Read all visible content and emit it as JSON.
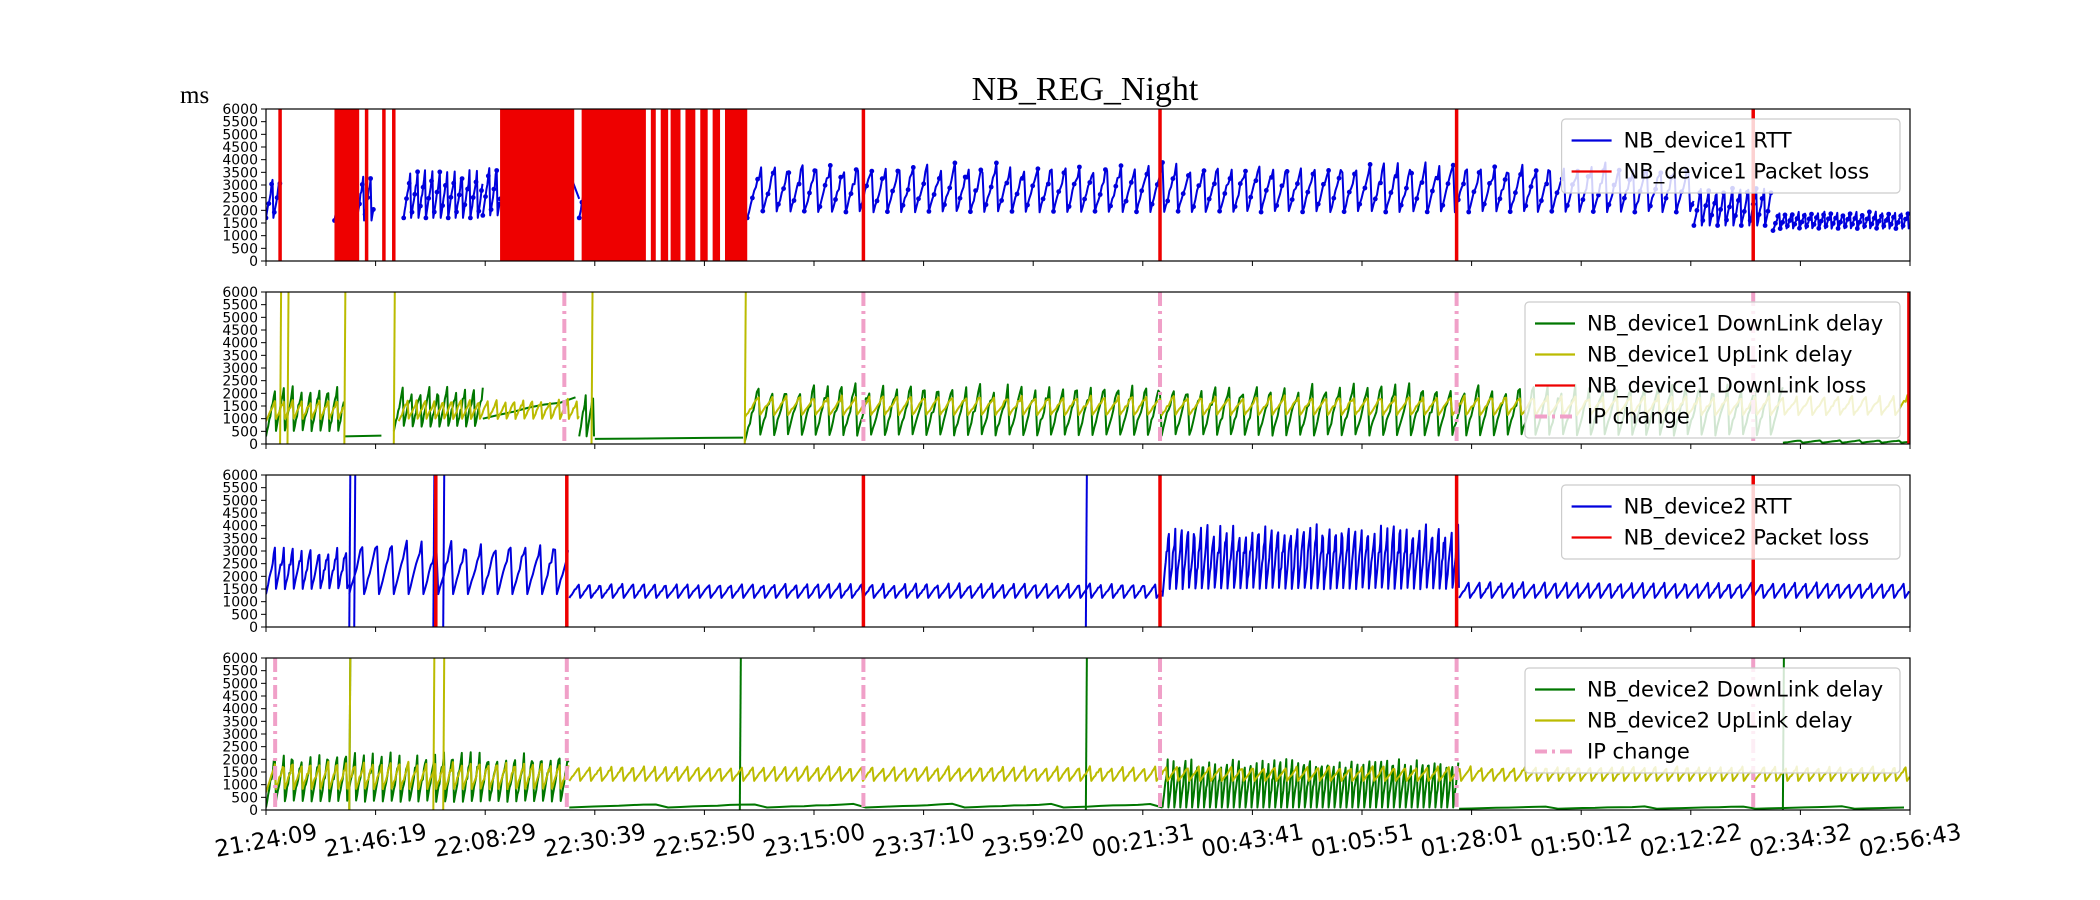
{
  "chart_data": {
    "type": "line",
    "title": "NB_REG_Night",
    "ylabel": "ms",
    "x_tick_labels": [
      "21:24:09",
      "21:46:19",
      "22:08:29",
      "22:30:39",
      "22:52:50",
      "23:15:00",
      "23:37:10",
      "23:59:20",
      "00:21:31",
      "00:43:41",
      "01:05:51",
      "01:28:01",
      "01:50:12",
      "02:12:22",
      "02:34:32",
      "02:56:43"
    ],
    "xlim": [
      "21:24:09",
      "02:56:43"
    ],
    "y_ticks": [
      0,
      500,
      1000,
      1500,
      2000,
      2500,
      3000,
      3500,
      4000,
      4500,
      5000,
      5500,
      6000
    ],
    "ylim": [
      0,
      6000
    ],
    "grid": false,
    "colors": {
      "rtt": "#0000dd",
      "loss": "#ee0000",
      "downlink": "#007700",
      "uplink": "#bbbb00",
      "ip_change": "#f0a0c8"
    },
    "panels": [
      {
        "legend": [
          "NB_device1 RTT",
          "NB_device1 Packet loss"
        ],
        "legend_position": "upper right",
        "series": [
          {
            "name": "NB_device1 RTT",
            "kind": "rtt",
            "markers": true,
            "segments": [
              {
                "start": "21:24:09",
                "end": "21:27:00",
                "min": 1700,
                "max": 3400,
                "period_min": 1.5
              },
              {
                "start": "21:38:00",
                "end": "21:46:00",
                "min": 1600,
                "max": 3500,
                "period_min": 1.5
              },
              {
                "start": "21:52:00",
                "end": "22:08:00",
                "min": 1700,
                "max": 3700,
                "period_min": 1.5
              },
              {
                "start": "22:08:00",
                "end": "22:11:30",
                "min": 1800,
                "max": 3800,
                "period_min": 1.5
              },
              {
                "start": "22:11:30",
                "end": "22:27:30",
                "min": 2450,
                "max": 3700,
                "period_min": 16
              },
              {
                "start": "22:27:30",
                "end": "22:30:40",
                "min": 1700,
                "max": 3200,
                "period_min": 1.5
              },
              {
                "start": "23:01:30",
                "end": "02:13:00",
                "min": 1700,
                "max": 3700,
                "period_min": 2.8
              },
              {
                "start": "02:13:00",
                "end": "02:29:00",
                "min": 1400,
                "max": 3000,
                "period_min": 1.6
              },
              {
                "start": "02:29:00",
                "end": "02:56:43",
                "min": 1200,
                "max": 1900,
                "period_min": 1.3
              }
            ]
          },
          {
            "name": "NB_device1 Packet loss",
            "kind": "loss",
            "bands": [
              {
                "start": "21:38:00",
                "end": "21:43:00"
              },
              {
                "start": "22:11:30",
                "end": "22:26:30"
              },
              {
                "start": "22:28:00",
                "end": "22:41:00"
              },
              {
                "start": "22:42:00",
                "end": "22:43:00"
              },
              {
                "start": "22:44:00",
                "end": "22:45:30"
              },
              {
                "start": "22:46:00",
                "end": "22:48:00"
              },
              {
                "start": "22:49:00",
                "end": "22:51:00"
              },
              {
                "start": "22:52:00",
                "end": "22:53:30"
              },
              {
                "start": "22:54:30",
                "end": "22:56:00"
              },
              {
                "start": "22:57:00",
                "end": "23:01:30"
              }
            ],
            "lines": [
              "21:27:00",
              "21:44:30",
              "21:48:00",
              "21:50:00",
              "23:25:00",
              "00:25:00",
              "01:25:00",
              "02:25:00"
            ]
          }
        ]
      },
      {
        "legend": [
          "NB_device1 DownLink delay",
          "NB_device1 UpLink delay",
          "NB_device1 DownLink loss",
          "IP change"
        ],
        "legend_position": "upper right",
        "series": [
          {
            "name": "NB_device1 DownLink delay",
            "kind": "downlink",
            "segments": [
              {
                "start": "21:24:09",
                "end": "21:40:00",
                "min": 300,
                "max": 2100,
                "period_min": 1.8
              },
              {
                "start": "21:40:00",
                "end": "21:50:00",
                "min": 300,
                "max": 450,
                "period_min": 30
              },
              {
                "start": "21:50:00",
                "end": "22:08:00",
                "min": 500,
                "max": 2100,
                "period_min": 1.8
              },
              {
                "start": "22:08:00",
                "end": "22:27:30",
                "min": 1000,
                "max": 2100,
                "period_min": 25
              },
              {
                "start": "22:27:30",
                "end": "22:30:40",
                "min": 300,
                "max": 2100,
                "period_min": 1.5
              },
              {
                "start": "22:30:40",
                "end": "23:01:00",
                "min": 200,
                "max": 300,
                "period_min": 60
              },
              {
                "start": "23:01:00",
                "end": "02:31:00",
                "min": 100,
                "max": 2200,
                "period_min": 2.8
              },
              {
                "start": "02:31:00",
                "end": "02:56:43",
                "min": 50,
                "max": 150,
                "period_min": 4
              }
            ]
          },
          {
            "name": "NB_device1 UpLink delay",
            "kind": "uplink",
            "segments": [
              {
                "start": "21:24:09",
                "end": "21:40:00",
                "min": 900,
                "max": 1700,
                "period_min": 1.8
              },
              {
                "start": "21:51:00",
                "end": "22:27:30",
                "min": 900,
                "max": 1700,
                "period_min": 1.8
              },
              {
                "start": "23:01:00",
                "end": "02:56:43",
                "min": 1050,
                "max": 1850,
                "period_min": 2.8
              }
            ],
            "spikes": [
              "21:27:00",
              "21:28:30",
              "21:40:00",
              "21:50:00",
              "22:30:00",
              "23:01:00"
            ]
          },
          {
            "name": "NB_device1 DownLink loss",
            "kind": "loss",
            "lines": [
              "02:56:30"
            ]
          },
          {
            "name": "IP change",
            "kind": "ip_change",
            "lines": [
              "22:24:30",
              "23:25:00",
              "00:25:00",
              "01:25:00",
              "02:25:00"
            ]
          }
        ]
      },
      {
        "legend": [
          "NB_device2 RTT",
          "NB_device2 Packet loss"
        ],
        "legend_position": "upper right",
        "series": [
          {
            "name": "NB_device2 RTT",
            "kind": "rtt",
            "segments": [
              {
                "start": "21:24:09",
                "end": "21:41:00",
                "min": 1300,
                "max": 3000,
                "period_min": 1.8
              },
              {
                "start": "21:41:00",
                "end": "22:25:30",
                "min": 1300,
                "max": 3500,
                "period_min": 3
              },
              {
                "start": "22:25:30",
                "end": "00:25:30",
                "min": 1150,
                "max": 1750,
                "period_min": 2.2
              },
              {
                "start": "00:25:30",
                "end": "01:25:30",
                "min": 1200,
                "max": 3800,
                "period_min": 1.3
              },
              {
                "start": "01:25:30",
                "end": "02:56:43",
                "min": 1150,
                "max": 1800,
                "period_min": 2.2
              }
            ],
            "spikes": [
              "21:41:00",
              "21:42:00",
              "21:58:00",
              "22:00:00",
              "00:10:00"
            ]
          },
          {
            "name": "NB_device2 Packet loss",
            "kind": "loss",
            "lines": [
              "21:58:30",
              "22:25:00",
              "23:25:00",
              "00:25:00",
              "01:25:00",
              "02:25:00"
            ]
          }
        ]
      },
      {
        "legend": [
          "NB_device2 DownLink delay",
          "NB_device2 UpLink delay",
          "IP change"
        ],
        "legend_position": "upper right",
        "series": [
          {
            "name": "NB_device2 DownLink delay",
            "kind": "downlink",
            "segments": [
              {
                "start": "21:24:09",
                "end": "22:25:30",
                "min": 100,
                "max": 2100,
                "period_min": 1.8
              },
              {
                "start": "22:25:30",
                "end": "00:25:30",
                "min": 100,
                "max": 250,
                "period_min": 20
              },
              {
                "start": "00:25:30",
                "end": "01:25:30",
                "min": 100,
                "max": 2100,
                "period_min": 1.2
              },
              {
                "start": "01:25:30",
                "end": "02:56:43",
                "min": 50,
                "max": 150,
                "period_min": 20
              }
            ],
            "spikes": [
              "21:41:00",
              "23:00:00",
              "00:10:00",
              "02:31:00"
            ]
          },
          {
            "name": "NB_device2 UpLink delay",
            "kind": "uplink",
            "segments": [
              {
                "start": "21:24:09",
                "end": "22:25:30",
                "min": 700,
                "max": 1800,
                "period_min": 1.8
              },
              {
                "start": "22:25:30",
                "end": "02:56:43",
                "min": 1150,
                "max": 1750,
                "period_min": 2.2
              }
            ],
            "spikes": [
              "21:41:00",
              "21:58:00",
              "22:00:00"
            ]
          },
          {
            "name": "IP change",
            "kind": "ip_change",
            "lines": [
              "21:26:00",
              "22:25:00",
              "23:25:00",
              "00:25:00",
              "01:25:00",
              "02:25:00"
            ]
          }
        ]
      }
    ]
  }
}
